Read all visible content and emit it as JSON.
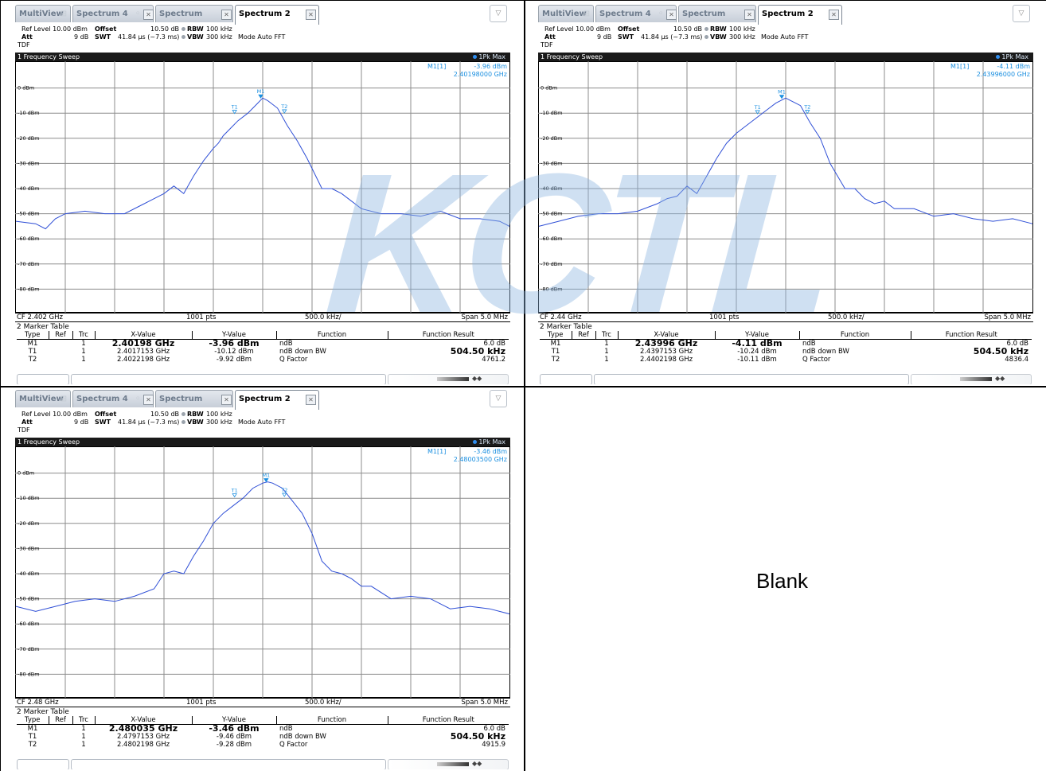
{
  "panels": [
    {
      "tabs": [
        "MultiView",
        "Spectrum 4",
        "Spectrum",
        "Spectrum 2"
      ],
      "settings": {
        "ref_level": "Ref Level 10.00 dBm",
        "offset_label": "Offset",
        "offset_value": "10.50 dB",
        "rbw_label": "RBW",
        "rbw_value": "100 kHz",
        "att_label": "Att",
        "att_value": "9 dB",
        "swt_label": "SWT",
        "swt_value": "41.84 µs (~7.3 ms)",
        "vbw_label": "VBW",
        "vbw_value": "300 kHz",
        "mode": "Mode Auto FFT",
        "tdf": "TDF"
      },
      "sweep_title": "1 Frequency Sweep",
      "trace_mode": "1Pk Max",
      "marker_readout": {
        "label": "M1[1]",
        "level": "-3.96 dBm",
        "freq": "2.40198000 GHz"
      },
      "y_labels": [
        "0 dBm",
        "-10 dBm",
        "-20 dBm",
        "-30 dBm",
        "-40 dBm",
        "-50 dBm",
        "-60 dBm",
        "-70 dBm",
        "-80 dBm"
      ],
      "axis": {
        "cf": "CF 2.402 GHz",
        "pts": "1001 pts",
        "div": "500.0 kHz/",
        "span": "Span 5.0 MHz"
      },
      "marker_table": {
        "title": "2 Marker Table",
        "headers": [
          "Type",
          "Ref",
          "Trc",
          "X-Value",
          "Y-Value",
          "Function",
          "Function Result"
        ],
        "rows": [
          [
            "M1",
            "",
            "1",
            "2.40198 GHz",
            "-3.96 dBm",
            "ndB",
            "6.0 dB"
          ],
          [
            "T1",
            "",
            "1",
            "2.4017153 GHz",
            "-10.12 dBm",
            "ndB down BW",
            "504.50 kHz"
          ],
          [
            "T2",
            "",
            "1",
            "2.4022198 GHz",
            "-9.92 dBm",
            "Q Factor",
            "4761.2"
          ]
        ]
      },
      "chart_data": {
        "type": "line",
        "xlabel": "",
        "ylabel": "",
        "x_range_mhz": [
          -2.5,
          2.5
        ],
        "ylim": [
          -90,
          10
        ],
        "x_offset_mhz": [
          -2.5,
          -2.3,
          -2.2,
          -2.1,
          -2.0,
          -1.8,
          -1.6,
          -1.4,
          -1.2,
          -1.0,
          -0.9,
          -0.8,
          -0.7,
          -0.6,
          -0.5,
          -0.45,
          -0.4,
          -0.3,
          -0.25,
          -0.15,
          -0.05,
          0.0,
          0.05,
          0.15,
          0.25,
          0.35,
          0.45,
          0.6,
          0.7,
          0.8,
          0.9,
          1.0,
          1.2,
          1.4,
          1.6,
          1.8,
          2.0,
          2.2,
          2.4,
          2.5
        ],
        "trace_dbm": [
          -53,
          -54,
          -56,
          -52,
          -50,
          -49,
          -50,
          -50,
          -46,
          -42,
          -39,
          -42,
          -35,
          -29,
          -24,
          -22,
          -19,
          -15,
          -13,
          -10,
          -6,
          -4,
          -5,
          -8,
          -15,
          -21,
          -28,
          -40,
          -40,
          -42,
          -45,
          -48,
          -50,
          -50,
          -51,
          -49,
          -52,
          -52,
          -53,
          -55
        ],
        "markers": [
          {
            "name": "M1",
            "x_offset_mhz": -0.02,
            "y_dbm": -3.96
          },
          {
            "name": "T1",
            "x_offset_mhz": -0.285,
            "y_dbm": -10.12
          },
          {
            "name": "T2",
            "x_offset_mhz": 0.22,
            "y_dbm": -9.92
          }
        ]
      }
    },
    {
      "tabs": [
        "MultiView",
        "Spectrum 4",
        "Spectrum",
        "Spectrum 2"
      ],
      "settings": {
        "ref_level": "Ref Level 10.00 dBm",
        "offset_label": "Offset",
        "offset_value": "10.50 dB",
        "rbw_label": "RBW",
        "rbw_value": "100 kHz",
        "att_label": "Att",
        "att_value": "9 dB",
        "swt_label": "SWT",
        "swt_value": "41.84 µs (~7.3 ms)",
        "vbw_label": "VBW",
        "vbw_value": "300 kHz",
        "mode": "Mode Auto FFT",
        "tdf": "TDF"
      },
      "sweep_title": "1 Frequency Sweep",
      "trace_mode": "1Pk Max",
      "marker_readout": {
        "label": "M1[1]",
        "level": "-4.11 dBm",
        "freq": "2.43996000 GHz"
      },
      "y_labels": [
        "0 dBm",
        "-10 dBm",
        "-20 dBm",
        "-30 dBm",
        "-40 dBm",
        "-50 dBm",
        "-60 dBm",
        "-70 dBm",
        "-80 dBm"
      ],
      "axis": {
        "cf": "CF 2.44 GHz",
        "pts": "1001 pts",
        "div": "500.0 kHz/",
        "span": "Span 5.0 MHz"
      },
      "marker_table": {
        "title": "2 Marker Table",
        "headers": [
          "Type",
          "Ref",
          "Trc",
          "X-Value",
          "Y-Value",
          "Function",
          "Function Result"
        ],
        "rows": [
          [
            "M1",
            "",
            "1",
            "2.43996 GHz",
            "-4.11 dBm",
            "ndB",
            "6.0 dB"
          ],
          [
            "T1",
            "",
            "1",
            "2.4397153 GHz",
            "-10.24 dBm",
            "ndB down BW",
            "504.50 kHz"
          ],
          [
            "T2",
            "",
            "1",
            "2.4402198 GHz",
            "-10.11 dBm",
            "Q Factor",
            "4836.4"
          ]
        ]
      },
      "chart_data": {
        "type": "line",
        "xlabel": "",
        "ylabel": "",
        "x_range_mhz": [
          -2.5,
          2.5
        ],
        "ylim": [
          -90,
          10
        ],
        "x_offset_mhz": [
          -2.5,
          -2.3,
          -2.1,
          -1.9,
          -1.7,
          -1.5,
          -1.3,
          -1.2,
          -1.1,
          -1.0,
          -0.9,
          -0.8,
          -0.7,
          -0.6,
          -0.5,
          -0.4,
          -0.3,
          -0.2,
          -0.1,
          0.0,
          0.05,
          0.15,
          0.25,
          0.35,
          0.45,
          0.6,
          0.7,
          0.8,
          0.9,
          1.0,
          1.1,
          1.3,
          1.5,
          1.7,
          1.9,
          2.1,
          2.3,
          2.5
        ],
        "trace_dbm": [
          -55,
          -53,
          -51,
          -50,
          -50,
          -49,
          -46,
          -44,
          -43,
          -39,
          -42,
          -35,
          -28,
          -22,
          -18,
          -15,
          -12,
          -9,
          -6,
          -4,
          -5,
          -7,
          -14,
          -20,
          -30,
          -40,
          -40,
          -44,
          -46,
          -45,
          -48,
          -48,
          -51,
          -50,
          -52,
          -53,
          -52,
          -54
        ],
        "markers": [
          {
            "name": "M1",
            "x_offset_mhz": -0.04,
            "y_dbm": -4.11
          },
          {
            "name": "T1",
            "x_offset_mhz": -0.285,
            "y_dbm": -10.24
          },
          {
            "name": "T2",
            "x_offset_mhz": 0.22,
            "y_dbm": -10.11
          }
        ]
      }
    },
    {
      "tabs": [
        "MultiView",
        "Spectrum 4",
        "Spectrum",
        "Spectrum 2"
      ],
      "settings": {
        "ref_level": "Ref Level 10.00 dBm",
        "offset_label": "Offset",
        "offset_value": "10.50 dB",
        "rbw_label": "RBW",
        "rbw_value": "100 kHz",
        "att_label": "Att",
        "att_value": "9 dB",
        "swt_label": "SWT",
        "swt_value": "41.84 µs (~7.3 ms)",
        "vbw_label": "VBW",
        "vbw_value": "300 kHz",
        "mode": "Mode Auto FFT",
        "tdf": "TDF"
      },
      "sweep_title": "1 Frequency Sweep",
      "trace_mode": "1Pk Max",
      "marker_readout": {
        "label": "M1[1]",
        "level": "-3.46 dBm",
        "freq": "2.48003500 GHz"
      },
      "y_labels": [
        "0 dBm",
        "-10 dBm",
        "-20 dBm",
        "-30 dBm",
        "-40 dBm",
        "-50 dBm",
        "-60 dBm",
        "-70 dBm",
        "-80 dBm"
      ],
      "axis": {
        "cf": "CF 2.48 GHz",
        "pts": "1001 pts",
        "div": "500.0 kHz/",
        "span": "Span 5.0 MHz"
      },
      "marker_table": {
        "title": "2 Marker Table",
        "headers": [
          "Type",
          "Ref",
          "Trc",
          "X-Value",
          "Y-Value",
          "Function",
          "Function Result"
        ],
        "rows": [
          [
            "M1",
            "",
            "1",
            "2.480035 GHz",
            "-3.46 dBm",
            "ndB",
            "6.0 dB"
          ],
          [
            "T1",
            "",
            "1",
            "2.4797153 GHz",
            "-9.46 dBm",
            "ndB down BW",
            "504.50 kHz"
          ],
          [
            "T2",
            "",
            "1",
            "2.4802198 GHz",
            "-9.28 dBm",
            "Q Factor",
            "4915.9"
          ]
        ]
      },
      "chart_data": {
        "type": "line",
        "xlabel": "",
        "ylabel": "",
        "x_range_mhz": [
          -2.5,
          2.5
        ],
        "ylim": [
          -90,
          10
        ],
        "x_offset_mhz": [
          -2.5,
          -2.3,
          -2.1,
          -1.9,
          -1.7,
          -1.5,
          -1.3,
          -1.1,
          -1.0,
          -0.9,
          -0.8,
          -0.7,
          -0.6,
          -0.5,
          -0.4,
          -0.3,
          -0.2,
          -0.1,
          0.0,
          0.05,
          0.1,
          0.2,
          0.3,
          0.4,
          0.5,
          0.6,
          0.7,
          0.8,
          0.9,
          1.0,
          1.1,
          1.3,
          1.5,
          1.7,
          1.9,
          2.1,
          2.3,
          2.5
        ],
        "trace_dbm": [
          -53,
          -55,
          -53,
          -51,
          -50,
          -51,
          -49,
          -46,
          -40,
          -39,
          -40,
          -33,
          -27,
          -20,
          -16,
          -13,
          -10,
          -6,
          -4,
          -3.5,
          -4,
          -6,
          -11,
          -16,
          -24,
          -35,
          -39,
          -40,
          -42,
          -45,
          -45,
          -50,
          -49,
          -50,
          -54,
          -53,
          -54,
          -56
        ],
        "markers": [
          {
            "name": "M1",
            "x_offset_mhz": 0.035,
            "y_dbm": -3.46
          },
          {
            "name": "T1",
            "x_offset_mhz": -0.285,
            "y_dbm": -9.46
          },
          {
            "name": "T2",
            "x_offset_mhz": 0.22,
            "y_dbm": -9.28
          }
        ]
      }
    }
  ],
  "blank_label": "Blank",
  "watermark": "KCTL",
  "colors": {
    "trace": "#2f4fd6",
    "marker": "#1a8fe0",
    "header_bg": "#1a1a1a",
    "watermark": "#8cb4e1"
  }
}
